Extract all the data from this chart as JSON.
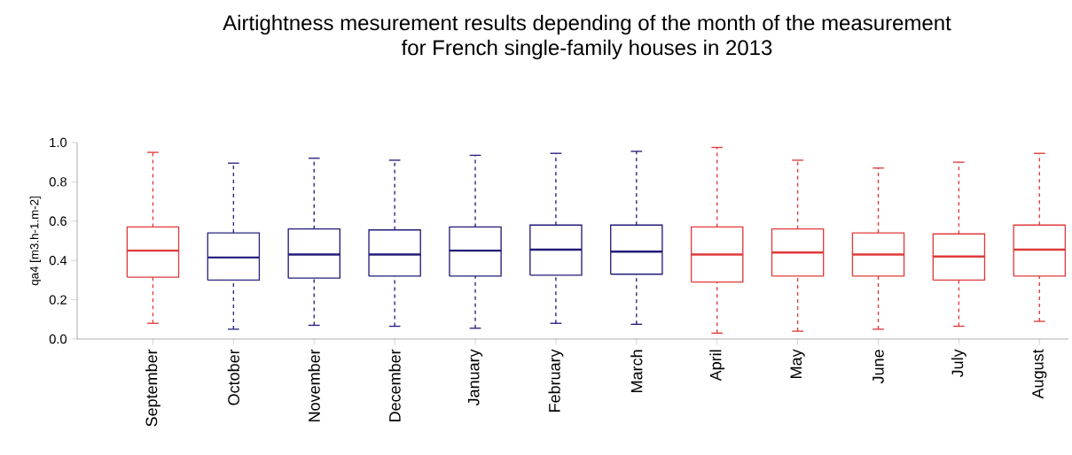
{
  "chart_data": {
    "type": "box",
    "title": "Airtightness mesurement results depending of the month of the measurement for French single-family houses in 2013",
    "ylabel": "qa4 [m3.h-1.m-2]",
    "categories": [
      "September",
      "October",
      "November",
      "December",
      "January",
      "February",
      "March",
      "April",
      "May",
      "June",
      "July",
      "August"
    ],
    "colors": [
      "#e03a3a",
      "#2a2580",
      "#221c78",
      "#221c78",
      "#221c78",
      "#221c78",
      "#221c78",
      "#e03a3a",
      "#e03a3a",
      "#e03a3a",
      "#e03a3a",
      "#e03a3a"
    ],
    "boxes": [
      {
        "low": 0.08,
        "q1": 0.315,
        "median": 0.45,
        "q3": 0.57,
        "high": 0.95
      },
      {
        "low": 0.05,
        "q1": 0.3,
        "median": 0.415,
        "q3": 0.54,
        "high": 0.895
      },
      {
        "low": 0.07,
        "q1": 0.31,
        "median": 0.43,
        "q3": 0.56,
        "high": 0.92
      },
      {
        "low": 0.065,
        "q1": 0.32,
        "median": 0.43,
        "q3": 0.555,
        "high": 0.91
      },
      {
        "low": 0.055,
        "q1": 0.32,
        "median": 0.45,
        "q3": 0.57,
        "high": 0.935
      },
      {
        "low": 0.08,
        "q1": 0.325,
        "median": 0.455,
        "q3": 0.58,
        "high": 0.945
      },
      {
        "low": 0.075,
        "q1": 0.33,
        "median": 0.445,
        "q3": 0.58,
        "high": 0.955
      },
      {
        "low": 0.03,
        "q1": 0.29,
        "median": 0.43,
        "q3": 0.57,
        "high": 0.975
      },
      {
        "low": 0.04,
        "q1": 0.32,
        "median": 0.44,
        "q3": 0.56,
        "high": 0.91
      },
      {
        "low": 0.05,
        "q1": 0.32,
        "median": 0.43,
        "q3": 0.54,
        "high": 0.87
      },
      {
        "low": 0.065,
        "q1": 0.3,
        "median": 0.42,
        "q3": 0.535,
        "high": 0.9
      },
      {
        "low": 0.09,
        "q1": 0.32,
        "median": 0.455,
        "q3": 0.58,
        "high": 0.945
      }
    ],
    "ylim": [
      0,
      1
    ],
    "yticks": [
      {
        "value": 0,
        "label": "0.0"
      },
      {
        "value": 0.2,
        "label": "0.2"
      },
      {
        "value": 0.4,
        "label": "0.4"
      },
      {
        "value": 0.6,
        "label": "0.6"
      },
      {
        "value": 0.8,
        "label": "0.8"
      },
      {
        "value": 1,
        "label": "1.0"
      }
    ]
  }
}
